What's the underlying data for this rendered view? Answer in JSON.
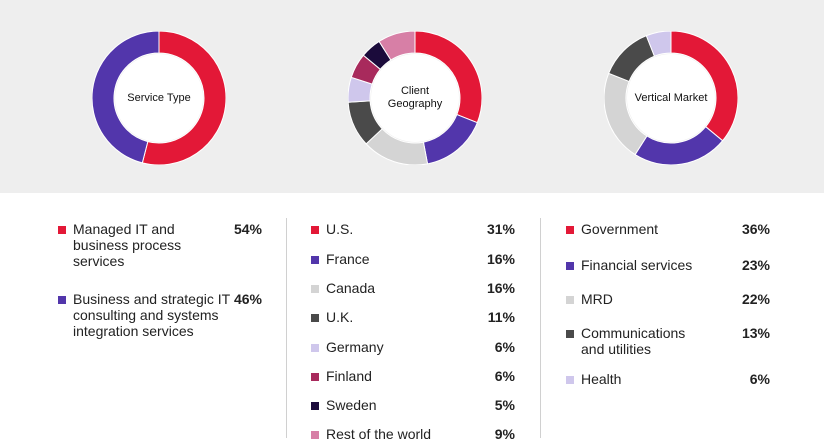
{
  "colors": {
    "background_top": "#eeeeee",
    "background_bottom": "#ffffff",
    "divider": "#d0d0d0"
  },
  "chart_data": [
    {
      "type": "pie",
      "title": "Service Type",
      "categories": [
        "Managed IT and business process services",
        "Business and strategic IT consulting and systems integration services"
      ],
      "values": [
        54,
        46
      ],
      "value_labels": [
        "54%",
        "46%"
      ],
      "colors": [
        "#e31837",
        "#5236ab"
      ],
      "unit": "%"
    },
    {
      "type": "pie",
      "title": "Client Geography",
      "categories": [
        "U.S.",
        "France",
        "Canada",
        "U.K.",
        "Germany",
        "Finland",
        "Sweden",
        "Rest of the world"
      ],
      "values": [
        31,
        16,
        16,
        11,
        6,
        6,
        5,
        9
      ],
      "value_labels": [
        "31%",
        "16%",
        "16%",
        "11%",
        "6%",
        "6%",
        "5%",
        "9%"
      ],
      "colors": [
        "#e31837",
        "#5236ab",
        "#d4d4d4",
        "#4a4a4a",
        "#cfc7ec",
        "#a82a5c",
        "#1b0b3b",
        "#d77fa6"
      ],
      "unit": "%"
    },
    {
      "type": "pie",
      "title": "Vertical Market",
      "categories": [
        "Government",
        "Financial services",
        "MRD",
        "Communications and utilities",
        "Health"
      ],
      "values": [
        36,
        23,
        22,
        13,
        6
      ],
      "value_labels": [
        "36%",
        "23%",
        "22%",
        "13%",
        "6%"
      ],
      "colors": [
        "#e31837",
        "#5236ab",
        "#d4d4d4",
        "#4a4a4a",
        "#cfc7ec"
      ],
      "unit": "%"
    }
  ]
}
